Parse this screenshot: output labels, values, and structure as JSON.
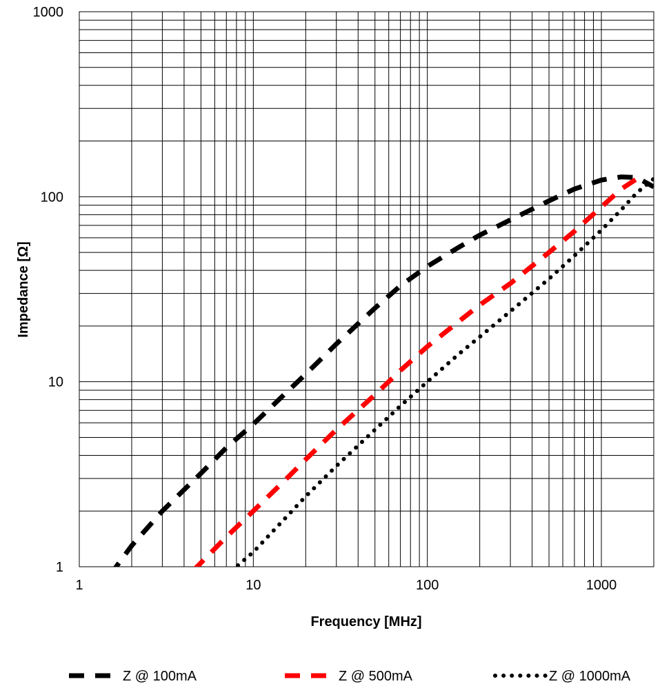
{
  "chart_data": {
    "type": "line",
    "x_scale": "log",
    "y_scale": "log",
    "xlim": [
      1,
      2000
    ],
    "ylim": [
      1,
      1000
    ],
    "xlabel": "Frequency [MHz]",
    "ylabel": "Impedance [Ω]",
    "grid": true,
    "legend_position": "bottom",
    "x_ticks": [
      "1",
      "10",
      "100",
      "1000"
    ],
    "y_ticks": [
      "1",
      "10",
      "100",
      "1000"
    ],
    "series": [
      {
        "name": "Z @ 100mA",
        "color": "#000000",
        "style": "dashed",
        "x": [
          1.5,
          2,
          3,
          5,
          7,
          10,
          15,
          20,
          30,
          50,
          70,
          100,
          150,
          200,
          300,
          500,
          700,
          1000,
          1300,
          1600,
          2000
        ],
        "y": [
          0.9,
          1.3,
          2.0,
          3.2,
          4.4,
          5.9,
          8.5,
          11,
          16,
          25,
          33,
          42,
          53,
          62,
          75,
          95,
          110,
          123,
          128,
          127,
          113
        ]
      },
      {
        "name": "Z @ 500mA",
        "color": "#ff0000",
        "style": "dashed",
        "x": [
          4.5,
          5,
          7,
          10,
          15,
          20,
          30,
          50,
          70,
          100,
          150,
          200,
          300,
          500,
          700,
          1000,
          1300,
          1600,
          1800
        ],
        "y": [
          0.95,
          1.05,
          1.45,
          2.0,
          2.9,
          3.8,
          5.5,
          8.5,
          11.5,
          15.5,
          21,
          26,
          34,
          50,
          65,
          88,
          110,
          125,
          128
        ]
      },
      {
        "name": "Z @ 1000mA",
        "color": "#000000",
        "style": "dotted",
        "x": [
          7.5,
          10,
          15,
          20,
          30,
          50,
          70,
          100,
          150,
          200,
          300,
          500,
          700,
          1000,
          1300,
          1600,
          2000
        ],
        "y": [
          0.95,
          1.2,
          1.8,
          2.4,
          3.5,
          5.5,
          7.4,
          10,
          14,
          17.5,
          24,
          36,
          48,
          66,
          85,
          105,
          125
        ]
      }
    ]
  }
}
